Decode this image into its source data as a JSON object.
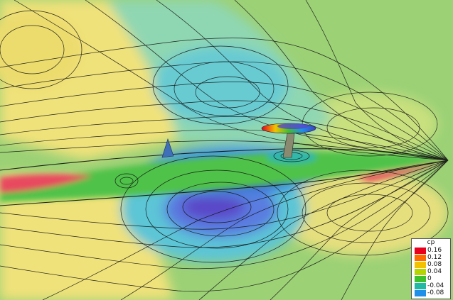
{
  "chart_data": {
    "type": "heatmap",
    "title": "",
    "variable": "cp",
    "colorbar": {
      "title": "cp",
      "placement": "bottom-right",
      "ticks": [
        "0.16",
        "0.12",
        "0.08",
        "0.04",
        "0",
        "-0.04",
        "-0.08"
      ],
      "values": [
        0.16,
        0.12,
        0.08,
        0.04,
        0,
        -0.04,
        -0.08
      ],
      "colors": [
        "#e8001c",
        "#ff6a00",
        "#f2c200",
        "#b5d400",
        "#3ec02c",
        "#22b8a4",
        "#1f8fe8"
      ]
    },
    "field_colors": {
      "background": "#9cd176",
      "high_positive": "#e84a5f",
      "positive": "#f0e27a",
      "mild_positive": "#d9e68a",
      "near_zero": "#4fc24a",
      "negative": "#4fc9d6",
      "strong_negative": "#3f63d6",
      "very_negative": "#5a46c8",
      "contour_line": "#111111"
    }
  }
}
